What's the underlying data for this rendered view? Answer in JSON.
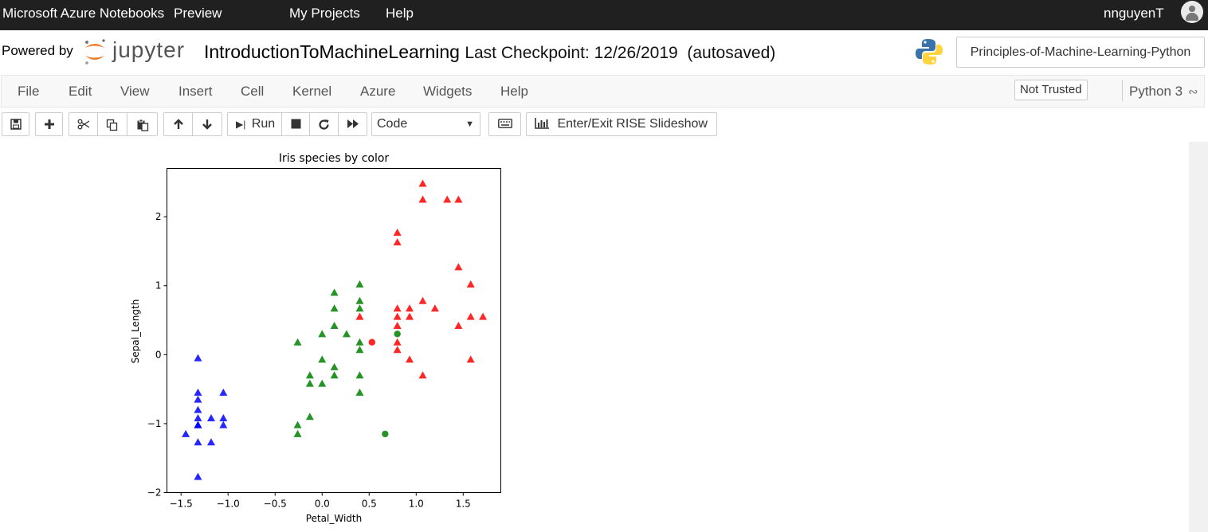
{
  "topbar": {
    "brand": "Microsoft Azure Notebooks",
    "preview": "Preview",
    "my_projects": "My Projects",
    "help": "Help",
    "username": "nnguyenT"
  },
  "header": {
    "powered_by": "Powered by",
    "jupyter": "jupyter",
    "notebook_name": "IntroductionToMachineLearning",
    "checkpoint": "Last Checkpoint: 12/26/2019  (autosaved)",
    "repo_button": "Principles-of-Machine-Learning-Python"
  },
  "menu": {
    "items": [
      "File",
      "Edit",
      "View",
      "Insert",
      "Cell",
      "Kernel",
      "Azure",
      "Widgets",
      "Help"
    ],
    "trusted": "Not Trusted",
    "kernel": "Python 3"
  },
  "toolbar": {
    "run_label": "Run",
    "cell_type": "Code",
    "rise_label": "Enter/Exit RISE Slideshow",
    "icons": [
      "save-icon",
      "plus-icon",
      "cut-icon",
      "copy-icon",
      "paste-icon",
      "arrow-up-icon",
      "arrow-down-icon",
      "run-icon",
      "stop-icon",
      "restart-icon",
      "fast-forward-icon",
      "keyboard-icon",
      "bar-chart-icon"
    ]
  },
  "chart_data": {
    "type": "scatter",
    "title": "Iris species by color",
    "xlabel": "Petal_Width",
    "ylabel": "Sepal_Length",
    "xlim": [
      -1.65,
      1.9
    ],
    "ylim": [
      -2.0,
      2.7
    ],
    "xticks": [
      "−1.5",
      "−1.0",
      "−0.5",
      "0.0",
      "0.5",
      "1.0",
      "1.5"
    ],
    "yticks": [
      "−2",
      "−1",
      "0",
      "1",
      "2"
    ],
    "colors": {
      "blue": "#0000ff",
      "green": "#008000",
      "red": "#ff0000"
    },
    "series": [
      {
        "color": "blue",
        "marker": "triangle",
        "points": [
          [
            -1.32,
            -0.05
          ],
          [
            -1.32,
            -0.55
          ],
          [
            -1.32,
            -0.65
          ],
          [
            -1.32,
            -0.8
          ],
          [
            -1.32,
            -0.92
          ],
          [
            -1.32,
            -1.02
          ],
          [
            -1.32,
            -1.02
          ],
          [
            -1.32,
            -1.27
          ],
          [
            -1.32,
            -1.77
          ],
          [
            -1.45,
            -1.15
          ],
          [
            -1.18,
            -0.92
          ],
          [
            -1.18,
            -1.27
          ],
          [
            -1.05,
            -0.55
          ],
          [
            -1.05,
            -0.92
          ],
          [
            -1.05,
            -1.02
          ]
        ]
      },
      {
        "color": "green",
        "marker": "triangle",
        "points": [
          [
            -0.26,
            0.18
          ],
          [
            -0.26,
            -1.02
          ],
          [
            -0.26,
            -1.15
          ],
          [
            -0.13,
            -0.3
          ],
          [
            -0.13,
            -0.42
          ],
          [
            -0.13,
            -0.9
          ],
          [
            0.0,
            0.3
          ],
          [
            0.0,
            -0.07
          ],
          [
            0.0,
            -0.42
          ],
          [
            0.13,
            0.9
          ],
          [
            0.13,
            0.67
          ],
          [
            0.13,
            0.42
          ],
          [
            0.13,
            -0.18
          ],
          [
            0.13,
            -0.3
          ],
          [
            0.26,
            0.3
          ],
          [
            0.4,
            1.02
          ],
          [
            0.4,
            0.78
          ],
          [
            0.4,
            0.67
          ],
          [
            0.4,
            0.18
          ],
          [
            0.4,
            0.07
          ],
          [
            0.4,
            -0.3
          ],
          [
            0.4,
            -0.55
          ]
        ]
      },
      {
        "color": "green",
        "marker": "circle",
        "points": [
          [
            0.8,
            0.3
          ],
          [
            0.67,
            -1.15
          ]
        ]
      },
      {
        "color": "red",
        "marker": "triangle",
        "points": [
          [
            1.07,
            2.48
          ],
          [
            1.07,
            2.25
          ],
          [
            1.33,
            2.25
          ],
          [
            1.45,
            2.25
          ],
          [
            0.8,
            1.77
          ],
          [
            0.8,
            1.63
          ],
          [
            1.45,
            1.27
          ],
          [
            1.58,
            1.02
          ],
          [
            0.4,
            0.55
          ],
          [
            0.8,
            0.67
          ],
          [
            0.8,
            0.55
          ],
          [
            0.8,
            0.42
          ],
          [
            0.8,
            0.18
          ],
          [
            0.8,
            0.07
          ],
          [
            0.93,
            0.67
          ],
          [
            0.93,
            0.55
          ],
          [
            0.93,
            -0.07
          ],
          [
            1.07,
            0.78
          ],
          [
            1.07,
            -0.3
          ],
          [
            1.2,
            0.67
          ],
          [
            1.45,
            0.42
          ],
          [
            1.58,
            0.55
          ],
          [
            1.58,
            -0.07
          ],
          [
            1.71,
            0.55
          ]
        ]
      },
      {
        "color": "red",
        "marker": "circle",
        "points": [
          [
            0.53,
            0.18
          ]
        ]
      }
    ]
  }
}
